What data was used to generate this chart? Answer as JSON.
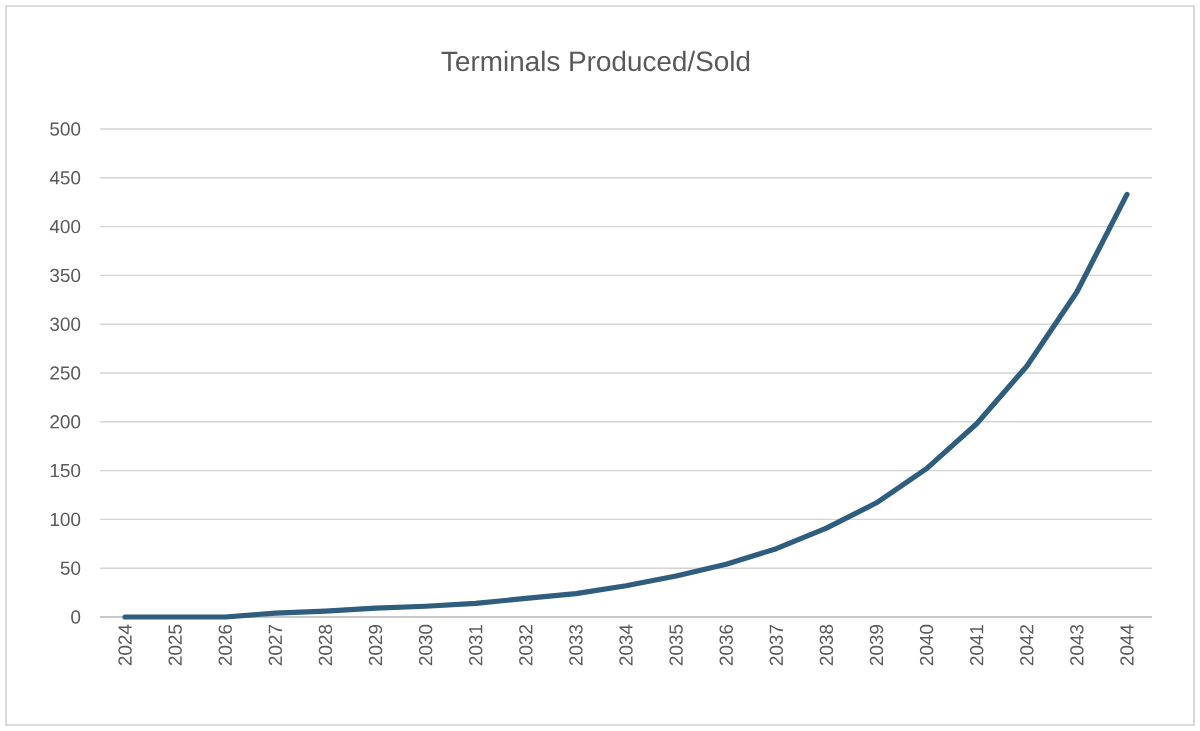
{
  "chart_data": {
    "type": "line",
    "title": "Terminals Produced/Sold",
    "categories": [
      "2024",
      "2025",
      "2026",
      "2027",
      "2028",
      "2029",
      "2030",
      "2031",
      "2032",
      "2033",
      "2034",
      "2035",
      "2036",
      "2037",
      "2038",
      "2039",
      "2040",
      "2041",
      "2042",
      "2043",
      "2044"
    ],
    "values": [
      0,
      0,
      0,
      4,
      6,
      9,
      11,
      14,
      19,
      24,
      32,
      42,
      54,
      70,
      91,
      117,
      152,
      198,
      257,
      333,
      433
    ],
    "color": "#2e5d7d",
    "ylim": [
      0,
      500
    ],
    "yticks": [
      0,
      50,
      100,
      150,
      200,
      250,
      300,
      350,
      400,
      450,
      500
    ],
    "grid": "y",
    "legend": false,
    "marker": "none",
    "line_style": "solid"
  }
}
